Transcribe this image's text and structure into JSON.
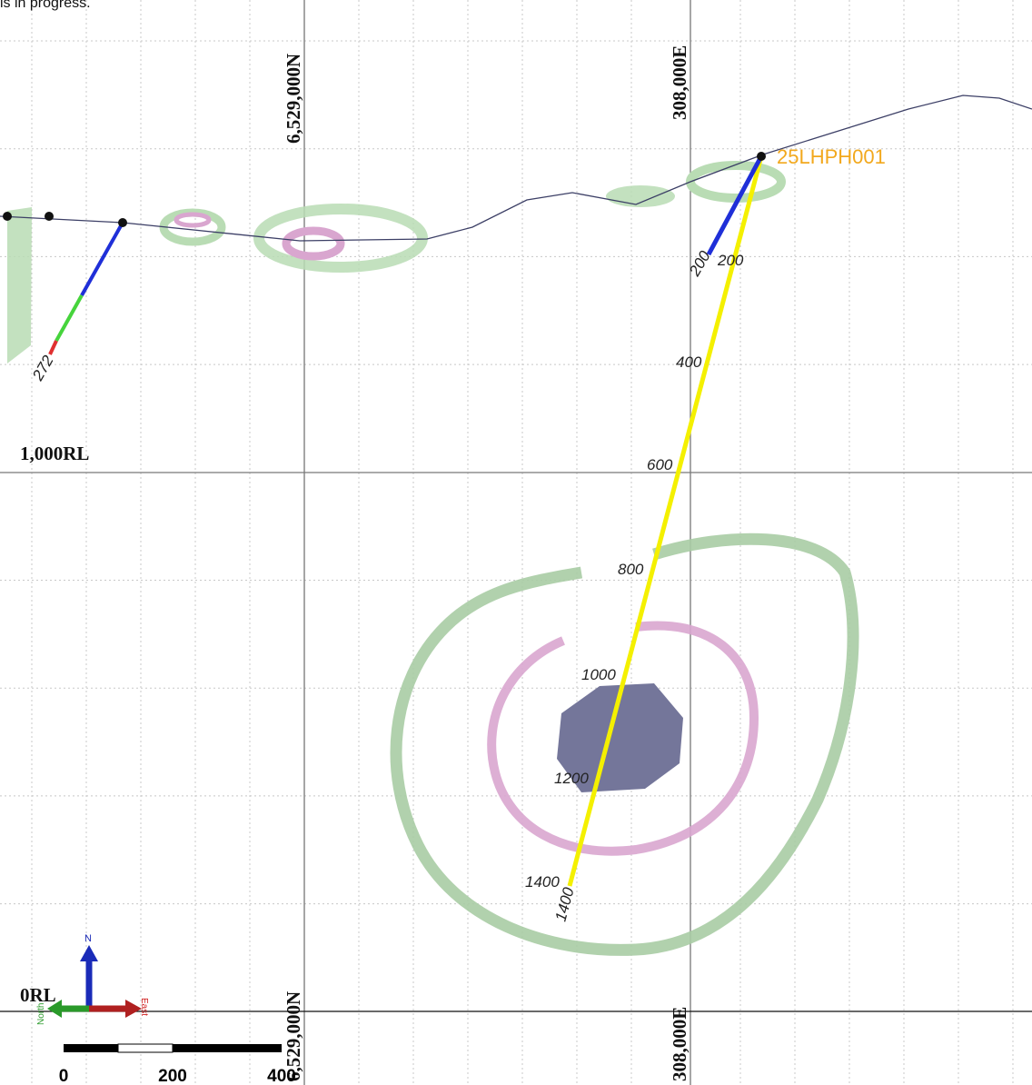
{
  "header_fragment": "ls in progress.",
  "grid_labels": {
    "northing_top": "6,529,000N",
    "northing_bottom": "6,529,000N",
    "easting_top": "308,000E",
    "easting_bottom": "308,000E",
    "rl_upper": "1,000RL",
    "rl_lower": "0RL"
  },
  "drillholes": [
    {
      "name": "25LHPH001",
      "depth_labels": [
        "200",
        "200",
        "400",
        "600",
        "800",
        "1000",
        "1200",
        "1400",
        "1400"
      ]
    },
    {
      "depth_labels": [
        "272"
      ]
    }
  ],
  "axes_triad": {
    "up": "N",
    "right": "East",
    "left": "North"
  },
  "scale_bar": {
    "labels": [
      "0",
      "200",
      "400"
    ]
  }
}
